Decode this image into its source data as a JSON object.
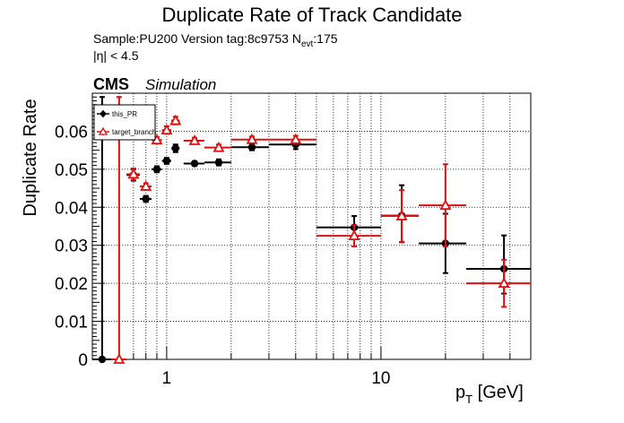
{
  "header": {
    "title": "Duplicate Rate of Track Candidate",
    "sample_line": "Sample:PU200   Version tag:8c9753  N",
    "nevt_sub": "evt",
    "nevt_value": ":175",
    "eta_cut": "|η| < 4.5",
    "cms": "CMS",
    "simulation": "Simulation"
  },
  "chart_data": {
    "type": "scatter",
    "title": "Duplicate Rate of Track Candidate",
    "ylabel": "Duplicate Rate",
    "xlabel_main": "p",
    "xlabel_sub": "T",
    "xlabel_unit": " [GeV]",
    "xscale": "log",
    "xlim": [
      0.45,
      50
    ],
    "ylim": [
      0,
      0.07
    ],
    "yticks": [
      0,
      0.01,
      0.02,
      0.03,
      0.04,
      0.05,
      0.06
    ],
    "ytick_labels": [
      "0",
      "0.01",
      "0.02",
      "0.03",
      "0.04",
      "0.05",
      "0.06"
    ],
    "xticks": [
      1,
      10
    ],
    "xtick_labels": [
      "1",
      "10"
    ],
    "grid": true,
    "legend_position": "top-left",
    "series": [
      {
        "name": "this_PR",
        "color": "#000000",
        "marker": "filled-circle",
        "points": [
          {
            "x": 0.5,
            "xlo": 0.45,
            "xhi": 0.55,
            "y": 0.0,
            "elo": 0.0,
            "ehi": 0.069
          },
          {
            "x": 0.7,
            "xlo": 0.65,
            "xhi": 0.75,
            "y": 0.0485,
            "elo": 0.0015,
            "ehi": 0.0015
          },
          {
            "x": 0.8,
            "xlo": 0.75,
            "xhi": 0.85,
            "y": 0.0422,
            "elo": 0.0008,
            "ehi": 0.0008
          },
          {
            "x": 0.9,
            "xlo": 0.85,
            "xhi": 0.95,
            "y": 0.05,
            "elo": 0.0008,
            "ehi": 0.0008
          },
          {
            "x": 1.0,
            "xlo": 0.95,
            "xhi": 1.05,
            "y": 0.0522,
            "elo": 0.0008,
            "ehi": 0.0008
          },
          {
            "x": 1.1,
            "xlo": 1.05,
            "xhi": 1.15,
            "y": 0.0555,
            "elo": 0.001,
            "ehi": 0.001
          },
          {
            "x": 1.35,
            "xlo": 1.2,
            "xhi": 1.5,
            "y": 0.0515,
            "elo": 0.0006,
            "ehi": 0.0006
          },
          {
            "x": 1.75,
            "xlo": 1.5,
            "xhi": 2.0,
            "y": 0.0518,
            "elo": 0.0008,
            "ehi": 0.0008
          },
          {
            "x": 2.5,
            "xlo": 2.0,
            "xhi": 3.0,
            "y": 0.0558,
            "elo": 0.0008,
            "ehi": 0.0008
          },
          {
            "x": 4.0,
            "xlo": 3.0,
            "xhi": 5.0,
            "y": 0.0565,
            "elo": 0.0012,
            "ehi": 0.0012
          },
          {
            "x": 7.5,
            "xlo": 5.0,
            "xhi": 10.0,
            "y": 0.0347,
            "elo": 0.003,
            "ehi": 0.003
          },
          {
            "x": 12.5,
            "xlo": 10.0,
            "xhi": 15.0,
            "y": 0.0378,
            "elo": 0.007,
            "ehi": 0.008
          },
          {
            "x": 20.0,
            "xlo": 15.0,
            "xhi": 25.0,
            "y": 0.0305,
            "elo": 0.0078,
            "ehi": 0.0078
          },
          {
            "x": 37.5,
            "xlo": 25.0,
            "xhi": 50.0,
            "y": 0.0238,
            "elo": 0.0065,
            "ehi": 0.0088
          }
        ]
      },
      {
        "name": "target_branch",
        "color": "#e01010",
        "marker": "open-triangle",
        "points": [
          {
            "x": 0.6,
            "xlo": 0.55,
            "xhi": 0.65,
            "y": 0.0,
            "elo": 0.0,
            "ehi": 0.069
          },
          {
            "x": 0.7,
            "xlo": 0.65,
            "xhi": 0.75,
            "y": 0.0487,
            "elo": 0.0015,
            "ehi": 0.0015
          },
          {
            "x": 0.8,
            "xlo": 0.75,
            "xhi": 0.85,
            "y": 0.0455,
            "elo": 0.0008,
            "ehi": 0.0008
          },
          {
            "x": 0.9,
            "xlo": 0.85,
            "xhi": 0.95,
            "y": 0.0577,
            "elo": 0.0008,
            "ehi": 0.0008
          },
          {
            "x": 1.0,
            "xlo": 0.95,
            "xhi": 1.05,
            "y": 0.0603,
            "elo": 0.001,
            "ehi": 0.001
          },
          {
            "x": 1.1,
            "xlo": 1.05,
            "xhi": 1.15,
            "y": 0.0628,
            "elo": 0.001,
            "ehi": 0.001
          },
          {
            "x": 1.35,
            "xlo": 1.2,
            "xhi": 1.5,
            "y": 0.0575,
            "elo": 0.0008,
            "ehi": 0.0008
          },
          {
            "x": 1.75,
            "xlo": 1.5,
            "xhi": 2.0,
            "y": 0.0557,
            "elo": 0.0008,
            "ehi": 0.0008
          },
          {
            "x": 2.5,
            "xlo": 2.0,
            "xhi": 3.0,
            "y": 0.0578,
            "elo": 0.0008,
            "ehi": 0.0008
          },
          {
            "x": 4.0,
            "xlo": 3.0,
            "xhi": 5.0,
            "y": 0.0578,
            "elo": 0.001,
            "ehi": 0.001
          },
          {
            "x": 7.5,
            "xlo": 5.0,
            "xhi": 10.0,
            "y": 0.0325,
            "elo": 0.0028,
            "ehi": 0.0028
          },
          {
            "x": 12.5,
            "xlo": 10.0,
            "xhi": 15.0,
            "y": 0.0377,
            "elo": 0.0068,
            "ehi": 0.0068
          },
          {
            "x": 20.0,
            "xlo": 15.0,
            "xhi": 25.0,
            "y": 0.0405,
            "elo": 0.0108,
            "ehi": 0.0108
          },
          {
            "x": 37.5,
            "xlo": 25.0,
            "xhi": 50.0,
            "y": 0.02,
            "elo": 0.0062,
            "ehi": 0.0062
          }
        ]
      }
    ]
  }
}
